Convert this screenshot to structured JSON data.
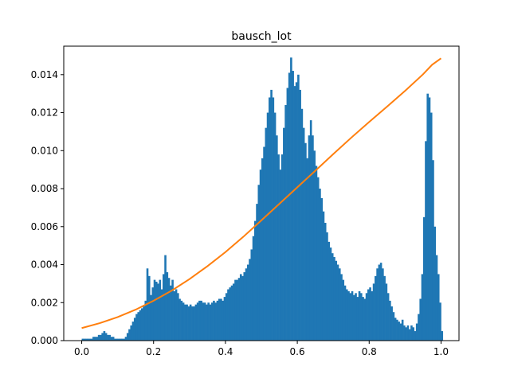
{
  "chart_data": {
    "type": "bar",
    "title": "bausch_lot",
    "xlabel": "",
    "ylabel": "",
    "xlim": [
      -0.05,
      1.05
    ],
    "ylim": [
      0.0,
      0.0155
    ],
    "grid": false,
    "legend": "none",
    "x_ticks": [
      {
        "value": 0.0,
        "label": "0.0"
      },
      {
        "value": 0.2,
        "label": "0.2"
      },
      {
        "value": 0.4,
        "label": "0.4"
      },
      {
        "value": 0.6,
        "label": "0.6"
      },
      {
        "value": 0.8,
        "label": "0.8"
      },
      {
        "value": 1.0,
        "label": "1.0"
      }
    ],
    "y_ticks": [
      {
        "value": 0.0,
        "label": "0.000"
      },
      {
        "value": 0.002,
        "label": "0.002"
      },
      {
        "value": 0.004,
        "label": "0.004"
      },
      {
        "value": 0.006,
        "label": "0.006"
      },
      {
        "value": 0.008,
        "label": "0.008"
      },
      {
        "value": 0.01,
        "label": "0.010"
      },
      {
        "value": 0.012,
        "label": "0.012"
      },
      {
        "value": 0.014,
        "label": "0.014"
      }
    ],
    "histogram": {
      "color": "#1f77b4",
      "bin_width": 0.005,
      "x_start": 0.0,
      "values": [
        0.0001,
        0.0001,
        0.0001,
        0.0001,
        0.0001,
        0.0001,
        0.0002,
        0.0002,
        0.0002,
        0.0003,
        0.0003,
        0.0004,
        0.0005,
        0.0004,
        0.0003,
        0.0003,
        0.0002,
        0.0002,
        0.0001,
        0.0001,
        0.0001,
        0.0001,
        0.0001,
        0.0001,
        0.0002,
        0.0004,
        0.0006,
        0.0008,
        0.001,
        0.0012,
        0.0014,
        0.0015,
        0.0016,
        0.0017,
        0.0018,
        0.0021,
        0.0038,
        0.0034,
        0.0024,
        0.0028,
        0.0032,
        0.0031,
        0.003,
        0.0032,
        0.0027,
        0.0035,
        0.0045,
        0.0036,
        0.0033,
        0.0029,
        0.0032,
        0.0026,
        0.0027,
        0.0025,
        0.0022,
        0.0021,
        0.002,
        0.0019,
        0.0019,
        0.0018,
        0.0019,
        0.0018,
        0.0018,
        0.0019,
        0.002,
        0.0021,
        0.0021,
        0.002,
        0.002,
        0.0019,
        0.002,
        0.0019,
        0.002,
        0.0021,
        0.002,
        0.0021,
        0.0022,
        0.0022,
        0.0021,
        0.0023,
        0.0025,
        0.0027,
        0.0028,
        0.0029,
        0.003,
        0.0032,
        0.0032,
        0.0033,
        0.0035,
        0.0034,
        0.0036,
        0.0038,
        0.004,
        0.0043,
        0.0048,
        0.0055,
        0.0063,
        0.0072,
        0.0082,
        0.009,
        0.0096,
        0.0102,
        0.0112,
        0.012,
        0.0128,
        0.0132,
        0.0128,
        0.012,
        0.0108,
        0.0098,
        0.009,
        0.0098,
        0.0112,
        0.0124,
        0.0133,
        0.0141,
        0.0149,
        0.0142,
        0.0134,
        0.0136,
        0.014,
        0.0132,
        0.0122,
        0.0112,
        0.0104,
        0.0096,
        0.0108,
        0.0116,
        0.0108,
        0.01,
        0.0092,
        0.0086,
        0.008,
        0.0075,
        0.0068,
        0.0062,
        0.0057,
        0.0052,
        0.0049,
        0.0046,
        0.0044,
        0.0042,
        0.004,
        0.0038,
        0.0035,
        0.0032,
        0.0029,
        0.0027,
        0.0026,
        0.0025,
        0.0026,
        0.0024,
        0.0025,
        0.0023,
        0.0026,
        0.0025,
        0.0023,
        0.0022,
        0.0025,
        0.0027,
        0.0028,
        0.0026,
        0.003,
        0.0034,
        0.0038,
        0.004,
        0.0041,
        0.0038,
        0.0034,
        0.003,
        0.0025,
        0.0021,
        0.0018,
        0.0015,
        0.0012,
        0.0011,
        0.001,
        0.0009,
        0.0011,
        0.0008,
        0.0007,
        0.0008,
        0.0006,
        0.0008,
        0.0007,
        0.0005,
        0.0009,
        0.0014,
        0.0022,
        0.0035,
        0.0065,
        0.0105,
        0.013,
        0.0128,
        0.012,
        0.0095,
        0.006,
        0.0045,
        0.0035,
        0.002,
        0.0005
      ]
    },
    "curve": {
      "color": "#ff7f0e",
      "x": [
        0.0,
        0.05,
        0.1,
        0.15,
        0.2,
        0.25,
        0.3,
        0.35,
        0.4,
        0.45,
        0.5,
        0.55,
        0.6,
        0.65,
        0.7,
        0.75,
        0.8,
        0.85,
        0.9,
        0.95,
        0.975,
        1.0
      ],
      "y": [
        0.00066,
        0.00092,
        0.00124,
        0.00163,
        0.0021,
        0.00263,
        0.00324,
        0.00392,
        0.00466,
        0.00547,
        0.00633,
        0.0072,
        0.00807,
        0.00894,
        0.00982,
        0.01068,
        0.01151,
        0.01232,
        0.01315,
        0.01402,
        0.01452,
        0.01486
      ]
    }
  }
}
